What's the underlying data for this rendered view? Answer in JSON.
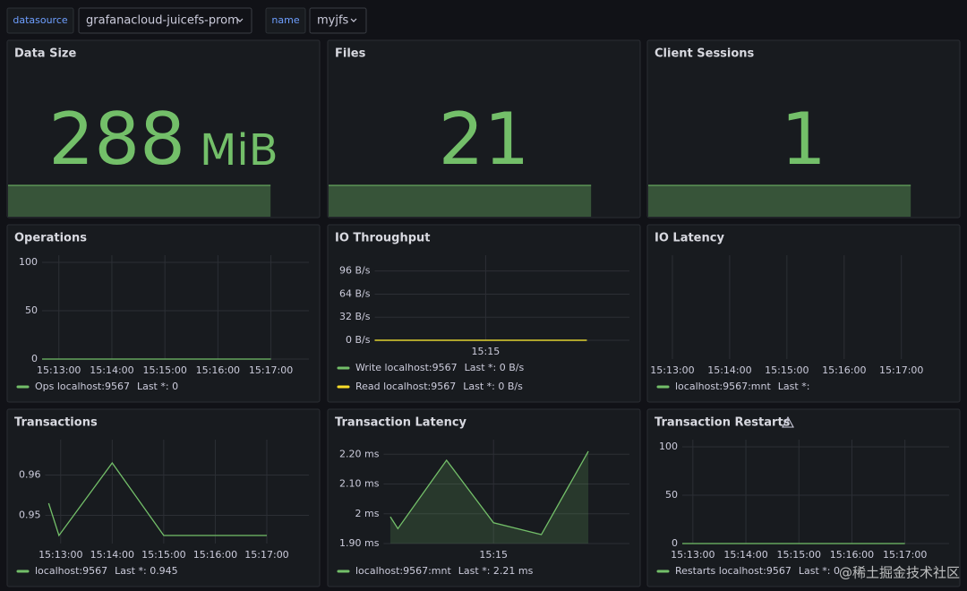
{
  "variables": [
    {
      "label": "datasource",
      "value": "grafanacloud-juicefs-prom"
    },
    {
      "label": "name",
      "value": "myjfs"
    }
  ],
  "panels": [
    {
      "title": "Data Size",
      "type": "stat",
      "value": 288,
      "unit": "MiB",
      "color": "#73bf69"
    },
    {
      "title": "Files",
      "type": "stat",
      "value": 21,
      "color": "#73bf69"
    },
    {
      "title": "Client Sessions",
      "type": "stat",
      "value": 1,
      "color": "#73bf69"
    },
    {
      "title": "Operations",
      "type": "line",
      "xlim": [
        "15:12:41",
        "15:17:43"
      ],
      "xticks": [
        "15:13:00",
        "15:14:00",
        "15:15:00",
        "15:16:00",
        "15:17:00"
      ],
      "ylim": [
        0,
        100
      ],
      "yticks": [
        0,
        50,
        100
      ],
      "grid": true,
      "x": [
        "15:12:41",
        "15:17:00"
      ],
      "series": [
        {
          "name": "Ops localhost:9567",
          "legend_calc": "Last *: 0",
          "color": "#73bf69",
          "values": [
            0,
            0
          ]
        }
      ]
    },
    {
      "title": "IO Throughput",
      "type": "line",
      "xlim": [
        "15:12:55",
        "15:17:42"
      ],
      "xticks": [
        {
          "value": "15:15:00",
          "label": "15:15"
        }
      ],
      "ylim": [
        0,
        108
      ],
      "yticks": [
        {
          "value": 0,
          "label": "0 B/s"
        },
        {
          "value": 32,
          "label": "32 B/s"
        },
        {
          "value": 64,
          "label": "64 B/s"
        },
        {
          "value": 96,
          "label": "96 B/s"
        }
      ],
      "grid": true,
      "x": [
        "15:12:55",
        "15:16:54"
      ],
      "series": [
        {
          "name": "Write localhost:9567",
          "legend_calc": "Last *: 0 B/s",
          "color": "#73bf69",
          "values": [
            0,
            0
          ]
        },
        {
          "name": "Read localhost:9567",
          "legend_calc": "Last *: 0 B/s",
          "color": "#fade2a",
          "values": [
            0,
            0
          ]
        }
      ]
    },
    {
      "title": "IO Latency",
      "type": "line",
      "xlim": [
        "15:12:45",
        "15:17:50"
      ],
      "xticks": [
        "15:13:00",
        "15:14:00",
        "15:15:00",
        "15:16:00",
        "15:17:00"
      ],
      "grid": true,
      "x": [],
      "series": [
        {
          "name": "localhost:9567:mnt",
          "legend_calc": "Last *:",
          "color": "#73bf69",
          "values": []
        }
      ]
    },
    {
      "title": "Transactions",
      "type": "line",
      "xlim": [
        "15:12:42",
        "15:17:49"
      ],
      "xticks": [
        "15:13:00",
        "15:14:00",
        "15:15:00",
        "15:16:00",
        "15:17:00"
      ],
      "ylim": [
        0.943,
        0.967
      ],
      "yticks": [
        0.95,
        0.96
      ],
      "grid": true,
      "x": [
        "15:12:46",
        "15:12:58",
        "15:14:00",
        "15:15:00",
        "15:17:00"
      ],
      "series": [
        {
          "name": "localhost:9567",
          "legend_calc": "Last *: 0.945",
          "color": "#73bf69",
          "values": [
            0.953,
            0.945,
            0.963,
            0.945,
            0.945
          ]
        }
      ]
    },
    {
      "title": "Transaction Latency",
      "type": "line",
      "xlim": [
        "15:12:49",
        "15:17:42"
      ],
      "xticks": [
        {
          "value": "15:15:00",
          "label": "15:15"
        }
      ],
      "ylim": [
        1.9,
        2.225
      ],
      "yticks": [
        {
          "value": 1.9,
          "label": "1.90 ms"
        },
        {
          "value": 2,
          "label": "2 ms"
        },
        {
          "value": 2.1,
          "label": "2.10 ms"
        },
        {
          "value": 2.2,
          "label": "2.20 ms"
        }
      ],
      "grid": true,
      "fill": true,
      "x": [
        "15:12:57",
        "15:13:06",
        "15:14:04",
        "15:15:00",
        "15:15:57",
        "15:16:53"
      ],
      "series": [
        {
          "name": "localhost:9567:mnt",
          "legend_calc": "Last *: 2.21 ms",
          "color": "#73bf69",
          "values": [
            1.99,
            1.95,
            2.18,
            1.97,
            1.93,
            2.21
          ]
        }
      ]
    },
    {
      "title": "Transaction Restarts",
      "type": "line",
      "xlim": [
        "15:12:48",
        "15:17:50"
      ],
      "xticks": [
        "15:13:00",
        "15:14:00",
        "15:15:00",
        "15:16:00",
        "15:17:00"
      ],
      "ylim": [
        0,
        100
      ],
      "yticks": [
        0,
        50,
        100
      ],
      "grid": true,
      "x": [
        "15:12:48",
        "15:17:00"
      ],
      "series": [
        {
          "name": "Restarts localhost:9567",
          "legend_calc": "Last *: 0",
          "color": "#73bf69",
          "values": [
            0,
            0
          ]
        }
      ]
    }
  ],
  "watermark": "@稀土掘金技术社区"
}
